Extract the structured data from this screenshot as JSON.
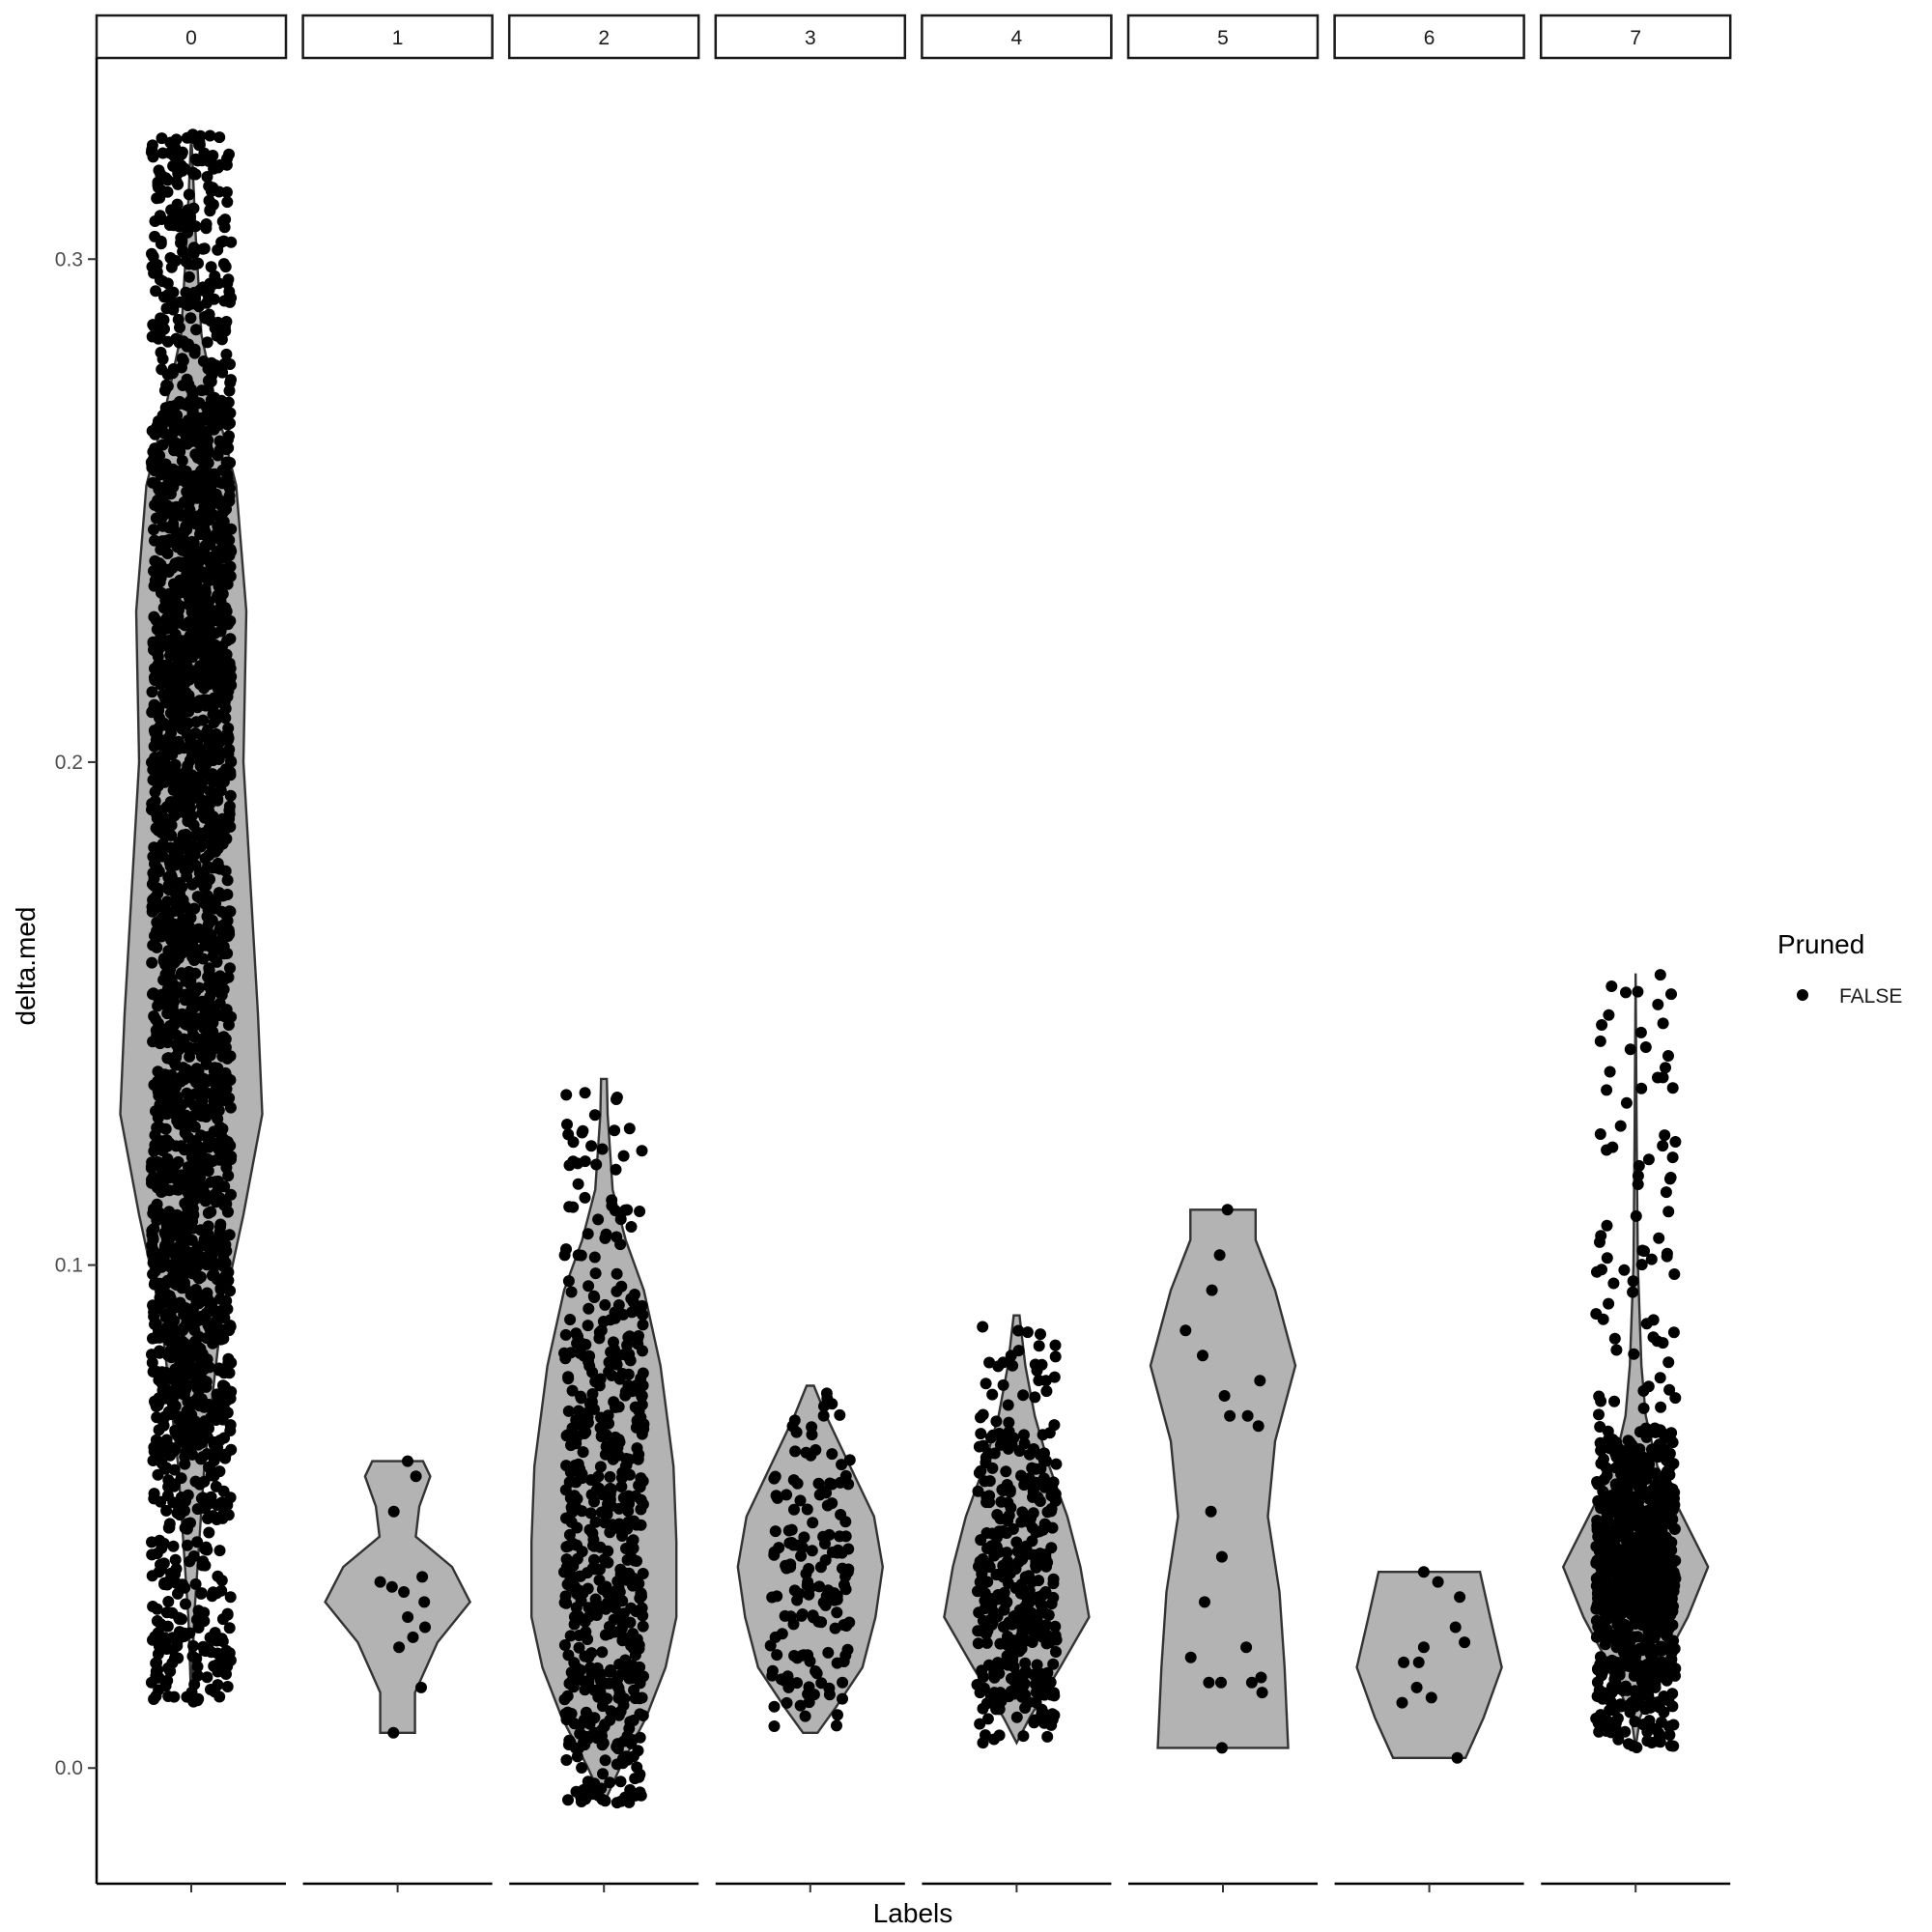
{
  "chart_data": {
    "type": "violin",
    "facets": [
      "0",
      "1",
      "2",
      "3",
      "4",
      "5",
      "6",
      "7"
    ],
    "xlabel": "Labels",
    "ylabel": "delta.med",
    "ylim": [
      -0.023,
      0.34
    ],
    "yticks": [
      0.0,
      0.1,
      0.2,
      0.3
    ],
    "ytick_labels": [
      "0.0",
      "0.1",
      "0.2",
      "0.3"
    ],
    "legend": {
      "title": "Pruned",
      "entries": [
        "FALSE"
      ],
      "position": "right"
    },
    "colors": {
      "violin_fill": "#b3b3b3",
      "violin_stroke": "#333333",
      "point": "#000000"
    },
    "groups": [
      {
        "label": "0",
        "n_points": 2600,
        "min": 0.013,
        "max": 0.325,
        "quantiles": [
          0.013,
          0.062,
          0.088,
          0.112,
          0.138,
          0.165,
          0.19,
          0.212,
          0.232,
          0.252,
          0.272,
          0.325
        ],
        "violin": [
          [
            0.013,
            0.0
          ],
          [
            0.03,
            0.04
          ],
          [
            0.06,
            0.18
          ],
          [
            0.09,
            0.42
          ],
          [
            0.11,
            0.72
          ],
          [
            0.13,
            0.98
          ],
          [
            0.15,
            0.92
          ],
          [
            0.18,
            0.8
          ],
          [
            0.2,
            0.72
          ],
          [
            0.23,
            0.76
          ],
          [
            0.255,
            0.62
          ],
          [
            0.27,
            0.36
          ],
          [
            0.285,
            0.14
          ],
          [
            0.305,
            0.06
          ],
          [
            0.325,
            0.0
          ]
        ]
      },
      {
        "label": "1",
        "n_points": 14,
        "min": 0.007,
        "max": 0.061,
        "values": [
          0.051,
          0.038,
          0.036,
          0.033,
          0.03,
          0.028,
          0.026,
          0.024,
          0.016,
          0.007,
          0.061,
          0.058,
          0.037,
          0.035
        ],
        "violin": [
          [
            0.007,
            0.24
          ],
          [
            0.015,
            0.24
          ],
          [
            0.025,
            0.55
          ],
          [
            0.033,
            1.0
          ],
          [
            0.04,
            0.75
          ],
          [
            0.046,
            0.25
          ],
          [
            0.052,
            0.3
          ],
          [
            0.058,
            0.45
          ],
          [
            0.061,
            0.35
          ]
        ]
      },
      {
        "label": "2",
        "n_points": 560,
        "min": -0.007,
        "max": 0.137,
        "quantiles": [
          -0.007,
          0.005,
          0.015,
          0.025,
          0.033,
          0.042,
          0.052,
          0.062,
          0.072,
          0.083,
          0.095,
          0.137
        ],
        "violin": [
          [
            -0.007,
            0.0
          ],
          [
            0.0,
            0.22
          ],
          [
            0.01,
            0.58
          ],
          [
            0.02,
            0.85
          ],
          [
            0.03,
            1.0
          ],
          [
            0.045,
            1.0
          ],
          [
            0.06,
            0.96
          ],
          [
            0.08,
            0.78
          ],
          [
            0.095,
            0.55
          ],
          [
            0.105,
            0.3
          ],
          [
            0.115,
            0.12
          ],
          [
            0.13,
            0.05
          ],
          [
            0.137,
            0.04
          ]
        ]
      },
      {
        "label": "3",
        "n_points": 155,
        "min": 0.008,
        "max": 0.076,
        "quantiles": [
          0.008,
          0.016,
          0.022,
          0.028,
          0.033,
          0.037,
          0.041,
          0.045,
          0.05,
          0.056,
          0.063,
          0.076
        ],
        "violin": [
          [
            0.007,
            0.1
          ],
          [
            0.012,
            0.35
          ],
          [
            0.02,
            0.72
          ],
          [
            0.03,
            0.9
          ],
          [
            0.04,
            1.0
          ],
          [
            0.05,
            0.88
          ],
          [
            0.06,
            0.55
          ],
          [
            0.07,
            0.22
          ],
          [
            0.076,
            0.05
          ]
        ]
      },
      {
        "label": "4",
        "n_points": 390,
        "min": 0.005,
        "max": 0.09,
        "quantiles": [
          0.005,
          0.014,
          0.02,
          0.026,
          0.03,
          0.034,
          0.039,
          0.044,
          0.05,
          0.057,
          0.067,
          0.09
        ],
        "violin": [
          [
            0.005,
            0.0
          ],
          [
            0.01,
            0.18
          ],
          [
            0.02,
            0.6
          ],
          [
            0.03,
            1.0
          ],
          [
            0.04,
            0.88
          ],
          [
            0.05,
            0.7
          ],
          [
            0.06,
            0.45
          ],
          [
            0.07,
            0.25
          ],
          [
            0.08,
            0.12
          ],
          [
            0.09,
            0.04
          ]
        ]
      },
      {
        "label": "5",
        "n_points": 21,
        "min": 0.004,
        "max": 0.111,
        "values": [
          0.111,
          0.102,
          0.095,
          0.087,
          0.082,
          0.077,
          0.074,
          0.07,
          0.07,
          0.068,
          0.051,
          0.042,
          0.033,
          0.024,
          0.022,
          0.018,
          0.017,
          0.017,
          0.017,
          0.015,
          0.004
        ],
        "violin": [
          [
            0.004,
            0.9
          ],
          [
            0.02,
            0.85
          ],
          [
            0.035,
            0.78
          ],
          [
            0.05,
            0.62
          ],
          [
            0.065,
            0.72
          ],
          [
            0.08,
            1.0
          ],
          [
            0.095,
            0.72
          ],
          [
            0.105,
            0.45
          ],
          [
            0.111,
            0.45
          ]
        ]
      },
      {
        "label": "6",
        "n_points": 12,
        "min": 0.002,
        "max": 0.039,
        "values": [
          0.039,
          0.037,
          0.034,
          0.028,
          0.025,
          0.024,
          0.021,
          0.021,
          0.016,
          0.014,
          0.013,
          0.002
        ],
        "violin": [
          [
            0.002,
            0.5
          ],
          [
            0.01,
            0.75
          ],
          [
            0.02,
            1.0
          ],
          [
            0.03,
            0.84
          ],
          [
            0.039,
            0.7
          ]
        ]
      },
      {
        "label": "7",
        "n_points": 950,
        "min": 0.004,
        "max": 0.158,
        "quantiles": [
          0.004,
          0.018,
          0.024,
          0.029,
          0.033,
          0.037,
          0.041,
          0.045,
          0.05,
          0.057,
          0.068,
          0.158
        ],
        "violin": [
          [
            0.004,
            0.0
          ],
          [
            0.01,
            0.06
          ],
          [
            0.02,
            0.35
          ],
          [
            0.03,
            0.72
          ],
          [
            0.04,
            1.0
          ],
          [
            0.05,
            0.65
          ],
          [
            0.06,
            0.3
          ],
          [
            0.07,
            0.14
          ],
          [
            0.08,
            0.08
          ],
          [
            0.1,
            0.03
          ],
          [
            0.125,
            0.015
          ],
          [
            0.158,
            0.0
          ]
        ]
      }
    ]
  }
}
